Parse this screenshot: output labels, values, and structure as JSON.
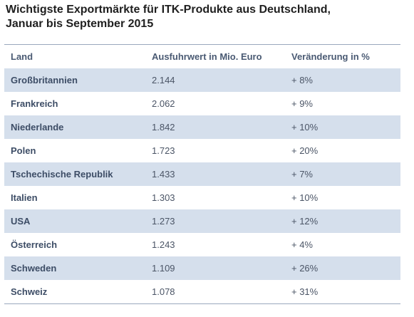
{
  "title": {
    "line1": "Wichtigste Exportmärkte für ITK-Produkte aus Deutschland,",
    "line2": "Januar bis September 2015"
  },
  "chart_data": {
    "type": "table",
    "columns": [
      "Land",
      "Ausfuhrwert in Mio. Euro",
      "Veränderung in %"
    ],
    "rows": [
      [
        "Großbritannien",
        "2.144",
        "+ 8%"
      ],
      [
        "Frankreich",
        "2.062",
        "+ 9%"
      ],
      [
        "Niederlande",
        "1.842",
        "+ 10%"
      ],
      [
        "Polen",
        "1.723",
        "+ 20%"
      ],
      [
        "Tschechische Republik",
        "1.433",
        "+ 7%"
      ],
      [
        "Italien",
        "1.303",
        "+ 10%"
      ],
      [
        "USA",
        "1.273",
        "+ 12%"
      ],
      [
        "Österreich",
        "1.243",
        "+ 4%"
      ],
      [
        "Schweden",
        "1.109",
        "+ 26%"
      ],
      [
        "Schweiz",
        "1.078",
        "+ 31%"
      ]
    ]
  },
  "colors": {
    "alt_row": "#d5dfec",
    "rule": "#9aa8bd",
    "header_text": "#4a5a73"
  }
}
